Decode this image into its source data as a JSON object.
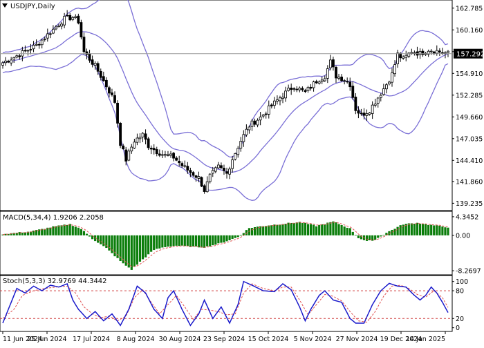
{
  "chart_data": [
    {
      "type": "candlestick",
      "title": "USDJPY,Daily",
      "ylim": [
        138.6,
        163.6
      ],
      "yticks": [
        139.235,
        141.86,
        144.41,
        147.035,
        149.66,
        152.285,
        154.91,
        157.535,
        160.16,
        162.785
      ],
      "ytick_labels": [
        "139.235",
        "141.860",
        "144.410",
        "147.035",
        "149.660",
        "152.285",
        "154.910",
        "157.535",
        "160.160",
        "162.785"
      ],
      "current_price": 157.292,
      "current_price_label": "157.292",
      "xtick_labels": [
        "11 Jun 2024",
        "25 Jun 2024",
        "17 Jul 2024",
        "8 Aug 2024",
        "30 Aug 2024",
        "23 Sep 2024",
        "15 Oct 2024",
        "5 Nov 2024",
        "27 Nov 2024",
        "19 Dec 2024",
        "14 Jan 2025"
      ],
      "bar_count": 160,
      "close_path": [
        {
          "i": 0,
          "v": 156.2
        },
        {
          "i": 6,
          "v": 157.2
        },
        {
          "i": 12,
          "v": 158.3
        },
        {
          "i": 18,
          "v": 160.2
        },
        {
          "i": 22,
          "v": 161.5
        },
        {
          "i": 25,
          "v": 161.7
        },
        {
          "i": 27,
          "v": 161.2
        },
        {
          "i": 29,
          "v": 157.5
        },
        {
          "i": 33,
          "v": 155.8
        },
        {
          "i": 37,
          "v": 153.4
        },
        {
          "i": 40,
          "v": 151.5
        },
        {
          "i": 42,
          "v": 146.5
        },
        {
          "i": 44,
          "v": 144.5
        },
        {
          "i": 47,
          "v": 146.8
        },
        {
          "i": 50,
          "v": 147.5
        },
        {
          "i": 52,
          "v": 146.2
        },
        {
          "i": 55,
          "v": 145.5
        },
        {
          "i": 58,
          "v": 145.0
        },
        {
          "i": 61,
          "v": 144.8
        },
        {
          "i": 64,
          "v": 143.8
        },
        {
          "i": 67,
          "v": 143.0
        },
        {
          "i": 70,
          "v": 142.3
        },
        {
          "i": 72,
          "v": 140.8
        },
        {
          "i": 74,
          "v": 142.5
        },
        {
          "i": 77,
          "v": 143.6
        },
        {
          "i": 80,
          "v": 142.8
        },
        {
          "i": 82,
          "v": 144.6
        },
        {
          "i": 85,
          "v": 146.8
        },
        {
          "i": 88,
          "v": 148.6
        },
        {
          "i": 92,
          "v": 149.6
        },
        {
          "i": 96,
          "v": 151.0
        },
        {
          "i": 100,
          "v": 152.3
        },
        {
          "i": 104,
          "v": 153.4
        },
        {
          "i": 108,
          "v": 152.6
        },
        {
          "i": 112,
          "v": 154.0
        },
        {
          "i": 115,
          "v": 154.6
        },
        {
          "i": 117,
          "v": 156.3
        },
        {
          "i": 119,
          "v": 154.6
        },
        {
          "i": 122,
          "v": 154.2
        },
        {
          "i": 124,
          "v": 153.6
        },
        {
          "i": 126,
          "v": 150.6
        },
        {
          "i": 128,
          "v": 149.9
        },
        {
          "i": 131,
          "v": 150.5
        },
        {
          "i": 134,
          "v": 152.0
        },
        {
          "i": 137,
          "v": 153.6
        },
        {
          "i": 139,
          "v": 154.8
        },
        {
          "i": 141,
          "v": 157.2
        },
        {
          "i": 143,
          "v": 156.6
        },
        {
          "i": 146,
          "v": 157.6
        },
        {
          "i": 149,
          "v": 157.3
        },
        {
          "i": 152,
          "v": 157.8
        },
        {
          "i": 155,
          "v": 157.6
        },
        {
          "i": 159,
          "v": 157.3
        }
      ]
    },
    {
      "type": "bar",
      "title": "MACD(5,34,4) 1.9206 2.2058",
      "ylim": [
        -8.9,
        5.3
      ],
      "yticks": [
        4.3452,
        0.0,
        -8.2697
      ],
      "ytick_labels": [
        "4.3452",
        "0.00",
        "-8.2697"
      ],
      "hist_path": [
        {
          "i": 0,
          "v": 0.3
        },
        {
          "i": 10,
          "v": 0.9
        },
        {
          "i": 18,
          "v": 2.0
        },
        {
          "i": 24,
          "v": 2.6
        },
        {
          "i": 28,
          "v": 1.5
        },
        {
          "i": 32,
          "v": -0.8
        },
        {
          "i": 37,
          "v": -3.0
        },
        {
          "i": 43,
          "v": -6.6
        },
        {
          "i": 46,
          "v": -8.0
        },
        {
          "i": 50,
          "v": -5.6
        },
        {
          "i": 54,
          "v": -3.4
        },
        {
          "i": 58,
          "v": -2.7
        },
        {
          "i": 62,
          "v": -2.4
        },
        {
          "i": 66,
          "v": -2.6
        },
        {
          "i": 72,
          "v": -2.8
        },
        {
          "i": 78,
          "v": -1.8
        },
        {
          "i": 84,
          "v": -0.4
        },
        {
          "i": 88,
          "v": 1.7
        },
        {
          "i": 93,
          "v": 2.2
        },
        {
          "i": 100,
          "v": 2.7
        },
        {
          "i": 106,
          "v": 3.1
        },
        {
          "i": 112,
          "v": 2.2
        },
        {
          "i": 118,
          "v": 3.2
        },
        {
          "i": 124,
          "v": 1.6
        },
        {
          "i": 127,
          "v": -0.6
        },
        {
          "i": 130,
          "v": -1.4
        },
        {
          "i": 133,
          "v": -1.0
        },
        {
          "i": 137,
          "v": 0.6
        },
        {
          "i": 143,
          "v": 2.6
        },
        {
          "i": 148,
          "v": 2.9
        },
        {
          "i": 153,
          "v": 2.4
        },
        {
          "i": 159,
          "v": 1.9
        }
      ]
    },
    {
      "type": "line",
      "title": "Stoch(5,3,3) 32.9769 44.3442",
      "ylim": [
        -5,
        110
      ],
      "yticks": [
        100,
        80,
        20,
        0
      ],
      "ytick_labels": [
        "100",
        "80",
        "20",
        "0"
      ],
      "levels": [
        80,
        20
      ],
      "k_path": [
        {
          "i": 0,
          "v": 10
        },
        {
          "i": 3,
          "v": 55
        },
        {
          "i": 5,
          "v": 85
        },
        {
          "i": 8,
          "v": 75
        },
        {
          "i": 11,
          "v": 90
        },
        {
          "i": 14,
          "v": 80
        },
        {
          "i": 17,
          "v": 92
        },
        {
          "i": 20,
          "v": 88
        },
        {
          "i": 23,
          "v": 95
        },
        {
          "i": 25,
          "v": 60
        },
        {
          "i": 27,
          "v": 40
        },
        {
          "i": 30,
          "v": 20
        },
        {
          "i": 33,
          "v": 35
        },
        {
          "i": 36,
          "v": 15
        },
        {
          "i": 39,
          "v": 30
        },
        {
          "i": 42,
          "v": 5
        },
        {
          "i": 45,
          "v": 40
        },
        {
          "i": 48,
          "v": 90
        },
        {
          "i": 51,
          "v": 75
        },
        {
          "i": 54,
          "v": 40
        },
        {
          "i": 57,
          "v": 20
        },
        {
          "i": 59,
          "v": 65
        },
        {
          "i": 61,
          "v": 80
        },
        {
          "i": 64,
          "v": 40
        },
        {
          "i": 67,
          "v": 5
        },
        {
          "i": 70,
          "v": 30
        },
        {
          "i": 72,
          "v": 60
        },
        {
          "i": 75,
          "v": 20
        },
        {
          "i": 78,
          "v": 45
        },
        {
          "i": 81,
          "v": 10
        },
        {
          "i": 84,
          "v": 50
        },
        {
          "i": 86,
          "v": 100
        },
        {
          "i": 89,
          "v": 92
        },
        {
          "i": 93,
          "v": 80
        },
        {
          "i": 97,
          "v": 78
        },
        {
          "i": 100,
          "v": 95
        },
        {
          "i": 103,
          "v": 82
        },
        {
          "i": 106,
          "v": 45
        },
        {
          "i": 108,
          "v": 15
        },
        {
          "i": 110,
          "v": 40
        },
        {
          "i": 113,
          "v": 70
        },
        {
          "i": 115,
          "v": 80
        },
        {
          "i": 118,
          "v": 60
        },
        {
          "i": 121,
          "v": 55
        },
        {
          "i": 124,
          "v": 20
        },
        {
          "i": 126,
          "v": 10
        },
        {
          "i": 129,
          "v": 10
        },
        {
          "i": 132,
          "v": 50
        },
        {
          "i": 135,
          "v": 80
        },
        {
          "i": 138,
          "v": 96
        },
        {
          "i": 141,
          "v": 90
        },
        {
          "i": 144,
          "v": 88
        },
        {
          "i": 147,
          "v": 70
        },
        {
          "i": 149,
          "v": 60
        },
        {
          "i": 151,
          "v": 70
        },
        {
          "i": 153,
          "v": 88
        },
        {
          "i": 155,
          "v": 75
        },
        {
          "i": 157,
          "v": 55
        },
        {
          "i": 159,
          "v": 33
        }
      ],
      "d_path": [
        {
          "i": 0,
          "v": 20
        },
        {
          "i": 4,
          "v": 40
        },
        {
          "i": 7,
          "v": 70
        },
        {
          "i": 11,
          "v": 80
        },
        {
          "i": 15,
          "v": 85
        },
        {
          "i": 19,
          "v": 88
        },
        {
          "i": 23,
          "v": 90
        },
        {
          "i": 26,
          "v": 75
        },
        {
          "i": 29,
          "v": 45
        },
        {
          "i": 32,
          "v": 30
        },
        {
          "i": 35,
          "v": 22
        },
        {
          "i": 38,
          "v": 25
        },
        {
          "i": 41,
          "v": 15
        },
        {
          "i": 44,
          "v": 25
        },
        {
          "i": 47,
          "v": 65
        },
        {
          "i": 50,
          "v": 82
        },
        {
          "i": 53,
          "v": 55
        },
        {
          "i": 56,
          "v": 30
        },
        {
          "i": 59,
          "v": 50
        },
        {
          "i": 62,
          "v": 70
        },
        {
          "i": 65,
          "v": 45
        },
        {
          "i": 68,
          "v": 18
        },
        {
          "i": 71,
          "v": 40
        },
        {
          "i": 74,
          "v": 38
        },
        {
          "i": 77,
          "v": 35
        },
        {
          "i": 80,
          "v": 28
        },
        {
          "i": 83,
          "v": 30
        },
        {
          "i": 86,
          "v": 75
        },
        {
          "i": 89,
          "v": 95
        },
        {
          "i": 93,
          "v": 85
        },
        {
          "i": 97,
          "v": 80
        },
        {
          "i": 100,
          "v": 88
        },
        {
          "i": 103,
          "v": 88
        },
        {
          "i": 106,
          "v": 60
        },
        {
          "i": 109,
          "v": 28
        },
        {
          "i": 112,
          "v": 50
        },
        {
          "i": 115,
          "v": 72
        },
        {
          "i": 118,
          "v": 68
        },
        {
          "i": 121,
          "v": 58
        },
        {
          "i": 124,
          "v": 35
        },
        {
          "i": 127,
          "v": 15
        },
        {
          "i": 130,
          "v": 12
        },
        {
          "i": 133,
          "v": 35
        },
        {
          "i": 136,
          "v": 68
        },
        {
          "i": 139,
          "v": 90
        },
        {
          "i": 142,
          "v": 92
        },
        {
          "i": 145,
          "v": 85
        },
        {
          "i": 148,
          "v": 72
        },
        {
          "i": 151,
          "v": 66
        },
        {
          "i": 154,
          "v": 80
        },
        {
          "i": 157,
          "v": 65
        },
        {
          "i": 159,
          "v": 44
        }
      ]
    }
  ],
  "colors": {
    "background": "#ffffff",
    "text": "#000000",
    "candle": "#000000",
    "bands": "#7a6fd6",
    "current_line": "#9a9a9a",
    "price_badge_bg": "#000000",
    "price_badge_text": "#ffffff",
    "macd_hist": "#0a7d0a",
    "macd_signal": "#e05050",
    "stoch_k": "#1a1acb",
    "stoch_d": "#e05050",
    "stoch_levels": "#d04040"
  },
  "icons": {
    "title_marker": "triangle-down-icon"
  }
}
